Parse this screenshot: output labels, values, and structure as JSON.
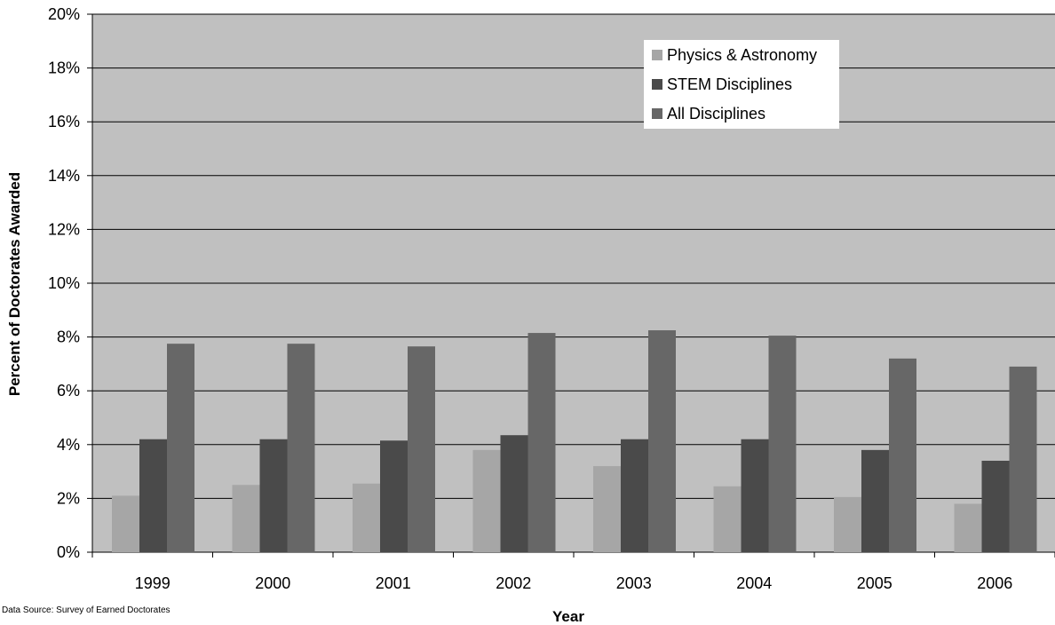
{
  "chart_data": {
    "type": "bar",
    "categories": [
      "1999",
      "2000",
      "2001",
      "2002",
      "2003",
      "2004",
      "2005",
      "2006"
    ],
    "series": [
      {
        "name": "Physics & Astronomy",
        "color": "#a6a6a6",
        "values": [
          2.1,
          2.5,
          2.55,
          3.8,
          3.2,
          2.45,
          2.05,
          1.8
        ]
      },
      {
        "name": "STEM Disciplines",
        "color": "#4a4a4a",
        "values": [
          4.2,
          4.2,
          4.15,
          4.35,
          4.2,
          4.2,
          3.8,
          3.4
        ]
      },
      {
        "name": "All Disciplines",
        "color": "#676767",
        "values": [
          7.75,
          7.75,
          7.65,
          8.15,
          8.25,
          8.05,
          7.2,
          6.9
        ]
      }
    ],
    "yticks": [
      "0%",
      "2%",
      "4%",
      "6%",
      "8%",
      "10%",
      "12%",
      "14%",
      "16%",
      "18%",
      "20%"
    ],
    "ylim": [
      0,
      20
    ],
    "xlabel": "Year",
    "ylabel": "Percent of Doctorates Awarded",
    "source": "Data Source: Survey of Earned Doctorates",
    "plot_background": "#c0c0c0",
    "grid": true,
    "legend_position": "top-right"
  }
}
